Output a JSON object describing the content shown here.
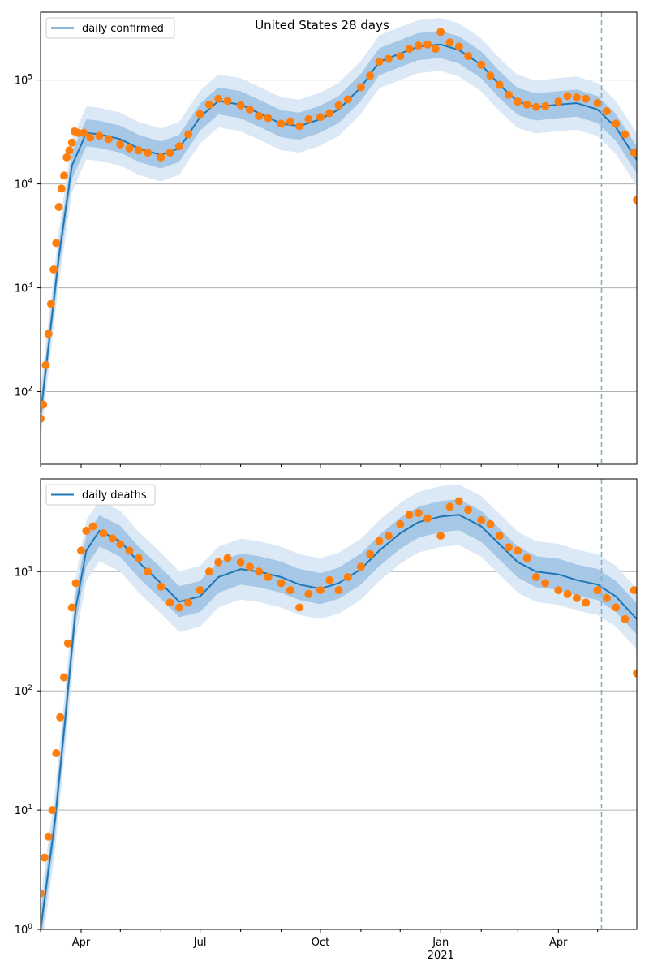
{
  "figure_title": "United States 28 days",
  "colors": {
    "model_line": "#1f77b4",
    "band_inner": "#a6c8e6",
    "band_outer": "#dbe9f6",
    "observed_points": "#ff7f0e",
    "forecast_start_line": "#7fb0c8",
    "grid": "#b0b0b0"
  },
  "x_tick_labels": [
    "Apr",
    "Jul",
    "Oct",
    "Jan",
    "Apr"
  ],
  "x_year_label": "2021",
  "chart_data": [
    {
      "type": "line",
      "title": "United States 28 days",
      "legend": [
        "daily confirmed"
      ],
      "legend_position": "upper-left",
      "yscale": "log",
      "ylim": [
        20,
        450000
      ],
      "xlim": [
        "2020-03-01",
        "2021-05-31"
      ],
      "forecast_start": "2021-05-04",
      "grid": "horizontal major",
      "y_tick_labels": [
        "10^2",
        "10^3",
        "10^4",
        "10^5"
      ],
      "y_ticks": [
        100,
        1000,
        10000,
        100000
      ],
      "model_curve": {
        "name": "daily confirmed",
        "x": [
          "2020-03-01",
          "2020-03-15",
          "2020-03-25",
          "2020-04-05",
          "2020-04-15",
          "2020-05-01",
          "2020-05-15",
          "2020-06-01",
          "2020-06-15",
          "2020-07-01",
          "2020-07-15",
          "2020-08-01",
          "2020-08-15",
          "2020-09-01",
          "2020-09-15",
          "2020-10-01",
          "2020-10-15",
          "2020-11-01",
          "2020-11-15",
          "2020-12-01",
          "2020-12-15",
          "2021-01-01",
          "2021-01-15",
          "2021-02-01",
          "2021-02-15",
          "2021-03-01",
          "2021-03-15",
          "2021-04-01",
          "2021-04-15",
          "2021-05-01",
          "2021-05-15",
          "2021-05-31"
        ],
        "y": [
          60,
          2000,
          15000,
          31000,
          30000,
          27000,
          22000,
          19000,
          22000,
          44000,
          63000,
          58000,
          48000,
          38000,
          36000,
          42000,
          52000,
          85000,
          150000,
          180000,
          210000,
          220000,
          195000,
          140000,
          90000,
          62000,
          55000,
          58000,
          60000,
          52000,
          35000,
          17000
        ]
      },
      "observed_series": {
        "name": "observed daily confirmed",
        "x": [
          "2020-03-01",
          "2020-03-03",
          "2020-03-05",
          "2020-03-07",
          "2020-03-09",
          "2020-03-11",
          "2020-03-13",
          "2020-03-15",
          "2020-03-17",
          "2020-03-19",
          "2020-03-21",
          "2020-03-23",
          "2020-03-25",
          "2020-03-27",
          "2020-03-30",
          "2020-04-03",
          "2020-04-08",
          "2020-04-15",
          "2020-04-22",
          "2020-05-01",
          "2020-05-08",
          "2020-05-15",
          "2020-05-22",
          "2020-06-01",
          "2020-06-08",
          "2020-06-15",
          "2020-06-22",
          "2020-07-01",
          "2020-07-08",
          "2020-07-15",
          "2020-07-22",
          "2020-08-01",
          "2020-08-08",
          "2020-08-15",
          "2020-08-22",
          "2020-09-01",
          "2020-09-08",
          "2020-09-15",
          "2020-09-22",
          "2020-10-01",
          "2020-10-08",
          "2020-10-15",
          "2020-10-22",
          "2020-11-01",
          "2020-11-08",
          "2020-11-15",
          "2020-11-22",
          "2020-12-01",
          "2020-12-08",
          "2020-12-15",
          "2020-12-22",
          "2020-12-28",
          "2021-01-01",
          "2021-01-08",
          "2021-01-15",
          "2021-01-22",
          "2021-02-01",
          "2021-02-08",
          "2021-02-15",
          "2021-02-22",
          "2021-03-01",
          "2021-03-08",
          "2021-03-15",
          "2021-03-22",
          "2021-04-01",
          "2021-04-08",
          "2021-04-15",
          "2021-04-22",
          "2021-05-01",
          "2021-05-08",
          "2021-05-15",
          "2021-05-22",
          "2021-05-29",
          "2021-05-31"
        ],
        "y": [
          55,
          75,
          180,
          360,
          700,
          1500,
          2700,
          6000,
          9000,
          12000,
          18000,
          21000,
          25000,
          32000,
          31000,
          31000,
          28000,
          29000,
          27000,
          24000,
          22000,
          21000,
          20000,
          18000,
          20000,
          23000,
          30000,
          47000,
          58000,
          66000,
          63000,
          57000,
          52000,
          45000,
          43000,
          38000,
          40000,
          36000,
          42000,
          44000,
          48000,
          57000,
          65000,
          85000,
          110000,
          150000,
          160000,
          170000,
          200000,
          215000,
          220000,
          200000,
          290000,
          230000,
          210000,
          170000,
          140000,
          110000,
          90000,
          72000,
          62000,
          58000,
          55000,
          56000,
          62000,
          70000,
          68000,
          66000,
          60000,
          50000,
          38000,
          30000,
          20000,
          7000
        ]
      },
      "bands": {
        "inner_factor": 1.35,
        "outer_factor": 1.8
      }
    },
    {
      "type": "line",
      "legend": [
        "daily deaths"
      ],
      "legend_position": "upper-left",
      "yscale": "log",
      "ylim": [
        1,
        6000
      ],
      "xlim": [
        "2020-03-01",
        "2021-05-31"
      ],
      "forecast_start": "2021-05-04",
      "grid": "horizontal major",
      "y_tick_labels": [
        "10^0",
        "10^1",
        "10^2",
        "10^3"
      ],
      "y_ticks": [
        1,
        10,
        100,
        1000
      ],
      "model_curve": {
        "name": "daily deaths",
        "x": [
          "2020-03-01",
          "2020-03-12",
          "2020-03-20",
          "2020-03-28",
          "2020-04-05",
          "2020-04-15",
          "2020-05-01",
          "2020-05-15",
          "2020-06-01",
          "2020-06-15",
          "2020-07-01",
          "2020-07-15",
          "2020-08-01",
          "2020-08-15",
          "2020-09-01",
          "2020-09-15",
          "2020-10-01",
          "2020-10-15",
          "2020-11-01",
          "2020-11-15",
          "2020-12-01",
          "2020-12-15",
          "2021-01-01",
          "2021-01-15",
          "2021-02-01",
          "2021-02-15",
          "2021-03-01",
          "2021-03-15",
          "2021-04-01",
          "2021-04-15",
          "2021-05-01",
          "2021-05-15",
          "2021-05-31"
        ],
        "y": [
          1,
          8,
          60,
          500,
          1500,
          2200,
          1800,
          1200,
          800,
          560,
          620,
          900,
          1050,
          1000,
          900,
          780,
          720,
          800,
          1050,
          1500,
          2100,
          2600,
          2900,
          3000,
          2400,
          1700,
          1200,
          1000,
          950,
          850,
          780,
          620,
          400
        ]
      },
      "observed_series": {
        "name": "observed daily deaths",
        "x": [
          "2020-03-01",
          "2020-03-04",
          "2020-03-07",
          "2020-03-10",
          "2020-03-13",
          "2020-03-16",
          "2020-03-19",
          "2020-03-22",
          "2020-03-25",
          "2020-03-28",
          "2020-04-01",
          "2020-04-05",
          "2020-04-10",
          "2020-04-18",
          "2020-04-25",
          "2020-05-01",
          "2020-05-08",
          "2020-05-15",
          "2020-05-22",
          "2020-06-01",
          "2020-06-08",
          "2020-06-15",
          "2020-06-22",
          "2020-07-01",
          "2020-07-08",
          "2020-07-15",
          "2020-07-22",
          "2020-08-01",
          "2020-08-08",
          "2020-08-15",
          "2020-08-22",
          "2020-09-01",
          "2020-09-08",
          "2020-09-15",
          "2020-09-22",
          "2020-10-01",
          "2020-10-08",
          "2020-10-15",
          "2020-10-22",
          "2020-11-01",
          "2020-11-08",
          "2020-11-15",
          "2020-11-22",
          "2020-12-01",
          "2020-12-08",
          "2020-12-15",
          "2020-12-22",
          "2021-01-01",
          "2021-01-08",
          "2021-01-15",
          "2021-01-22",
          "2021-02-01",
          "2021-02-08",
          "2021-02-15",
          "2021-02-22",
          "2021-03-01",
          "2021-03-08",
          "2021-03-15",
          "2021-03-22",
          "2021-04-01",
          "2021-04-08",
          "2021-04-15",
          "2021-04-22",
          "2021-05-01",
          "2021-05-08",
          "2021-05-15",
          "2021-05-22",
          "2021-05-29",
          "2021-05-31"
        ],
        "y": [
          2,
          4,
          6,
          10,
          30,
          60,
          130,
          250,
          500,
          800,
          1500,
          2200,
          2400,
          2100,
          1900,
          1700,
          1500,
          1300,
          1000,
          750,
          550,
          500,
          550,
          700,
          1000,
          1200,
          1300,
          1200,
          1100,
          1000,
          900,
          800,
          700,
          500,
          650,
          700,
          850,
          700,
          900,
          1100,
          1400,
          1800,
          2000,
          2500,
          3000,
          3100,
          2800,
          2000,
          3500,
          3900,
          3300,
          2700,
          2500,
          2000,
          1600,
          1500,
          1300,
          900,
          800,
          700,
          650,
          600,
          550,
          700,
          600,
          500,
          400,
          700,
          140
        ]
      },
      "bands": {
        "inner_factor": 1.35,
        "outer_factor": 1.8
      }
    }
  ]
}
